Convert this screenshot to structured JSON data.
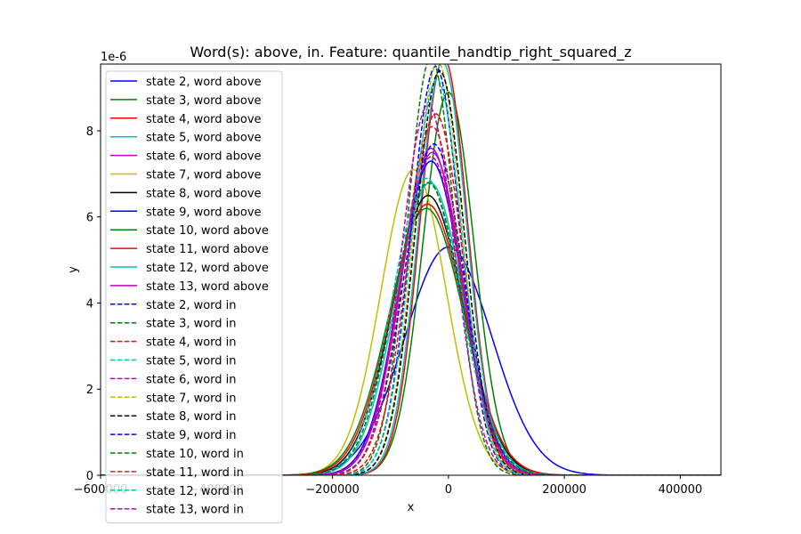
{
  "chart_data": {
    "type": "line",
    "title": "Word(s): above, in. Feature: quantile_handtip_right_squared_z",
    "xlabel": "x",
    "ylabel": "y",
    "y_offset_label": "1e-6",
    "xlim": [
      -600000,
      470000
    ],
    "ylim": [
      0,
      9.55
    ],
    "x_ticks": [
      -600000,
      -400000,
      -200000,
      0,
      200000,
      400000
    ],
    "x_tick_labels": [
      "−600000",
      "−400000",
      "−200000",
      "0",
      "200000",
      "400000"
    ],
    "y_ticks": [
      0,
      2,
      4,
      6,
      8
    ],
    "y_tick_labels": [
      "0",
      "2",
      "4",
      "6",
      "8"
    ],
    "grid": false,
    "legend_position": "upper-left",
    "series": [
      {
        "name": "state 2, word above",
        "color": "#0000ff",
        "dash": "solid",
        "mean": 0,
        "peak": 5.3,
        "sigma": 75000
      },
      {
        "name": "state 3, word above",
        "color": "#008000",
        "dash": "solid",
        "mean": 0,
        "peak": 8.9,
        "sigma": 44000
      },
      {
        "name": "state 4, word above",
        "color": "#ff0000",
        "dash": "solid",
        "mean": -8000,
        "peak": 9.7,
        "sigma": 41000
      },
      {
        "name": "state 5, word above",
        "color": "#00bfbf",
        "dash": "solid",
        "mean": -10000,
        "peak": 9.6,
        "sigma": 41500
      },
      {
        "name": "state 6, word above",
        "color": "#bf00bf",
        "dash": "solid",
        "mean": -28000,
        "peak": 7.5,
        "sigma": 53000
      },
      {
        "name": "state 7, word above",
        "color": "#bfbf00",
        "dash": "solid",
        "mean": -60000,
        "peak": 7.1,
        "sigma": 56000
      },
      {
        "name": "state 8, word above",
        "color": "#000000",
        "dash": "solid",
        "mean": -35000,
        "peak": 6.5,
        "sigma": 61000
      },
      {
        "name": "state 9, word above",
        "color": "#0000ff",
        "dash": "solid",
        "mean": -30000,
        "peak": 7.3,
        "sigma": 54000
      },
      {
        "name": "state 10, word above",
        "color": "#008000",
        "dash": "solid",
        "mean": -38000,
        "peak": 6.2,
        "sigma": 64000
      },
      {
        "name": "state 11, word above",
        "color": "#ff0000",
        "dash": "solid",
        "mean": -36000,
        "peak": 6.3,
        "sigma": 63000
      },
      {
        "name": "state 12, word above",
        "color": "#00bfbf",
        "dash": "solid",
        "mean": -32000,
        "peak": 6.8,
        "sigma": 58000
      },
      {
        "name": "state 13, word above",
        "color": "#bf00bf",
        "dash": "solid",
        "mean": -30000,
        "peak": 7.6,
        "sigma": 52000
      },
      {
        "name": "state 2, word in",
        "color": "#0000ff",
        "dash": "dashed",
        "mean": -22000,
        "peak": 9.5,
        "sigma": 42000
      },
      {
        "name": "state 3, word in",
        "color": "#008000",
        "dash": "dashed",
        "mean": -30000,
        "peak": 9.7,
        "sigma": 41000
      },
      {
        "name": "state 4, word in",
        "color": "#ff0000",
        "dash": "dashed",
        "mean": -22000,
        "peak": 8.4,
        "sigma": 47000
      },
      {
        "name": "state 5, word in",
        "color": "#00bfbf",
        "dash": "dashed",
        "mean": -38000,
        "peak": 6.9,
        "sigma": 58000
      },
      {
        "name": "state 6, word in",
        "color": "#bf00bf",
        "dash": "dashed",
        "mean": -35000,
        "peak": 8.6,
        "sigma": 46000
      },
      {
        "name": "state 7, word in",
        "color": "#bfbf00",
        "dash": "dashed",
        "mean": -18000,
        "peak": 9.6,
        "sigma": 41000
      },
      {
        "name": "state 8, word in",
        "color": "#000000",
        "dash": "dashed",
        "mean": -15000,
        "peak": 9.4,
        "sigma": 42000
      },
      {
        "name": "state 9, word in",
        "color": "#0000ff",
        "dash": "dashed",
        "mean": -25000,
        "peak": 7.7,
        "sigma": 51000
      },
      {
        "name": "state 10, word in",
        "color": "#008000",
        "dash": "dashed",
        "mean": -35000,
        "peak": 6.8,
        "sigma": 58000
      },
      {
        "name": "state 11, word in",
        "color": "#d62728",
        "dash": "dashed",
        "mean": -28000,
        "peak": 8.1,
        "sigma": 49000
      },
      {
        "name": "state 12, word in",
        "color": "#00bfbf",
        "dash": "dashed",
        "mean": -20000,
        "peak": 9.2,
        "sigma": 43000
      },
      {
        "name": "state 13, word in",
        "color": "#bf00bf",
        "dash": "dashed",
        "mean": -30000,
        "peak": 7.4,
        "sigma": 53000
      }
    ]
  }
}
